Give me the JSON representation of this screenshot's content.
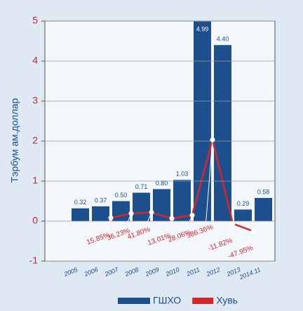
{
  "chart_data": {
    "type": "bar",
    "y_label": "Тэрбум ам.доллар",
    "categories": [
      "2005",
      "2006",
      "2007",
      "2008",
      "2009",
      "2010",
      "2011",
      "2012",
      "2013",
      "2014.11"
    ],
    "series": [
      {
        "name": "ГШХО",
        "type": "bar",
        "color": "#1d4f8c",
        "values": [
          0.32,
          0.37,
          0.5,
          0.71,
          0.8,
          1.03,
          4.99,
          4.4,
          0.29,
          0.58
        ],
        "value_labels": [
          "0.32",
          "0.37",
          "0.50",
          "0.71",
          "0.80",
          "1.03",
          "4.99",
          "4.40",
          "0.29",
          "0.58"
        ]
      },
      {
        "name": "Хувь",
        "type": "line",
        "color": "#d7262b",
        "values": [
          null,
          15.85,
          36.23,
          41.8,
          13.01,
          28.06,
          386.36,
          -11.82,
          -47.95,
          null
        ],
        "value_labels": [
          null,
          "15.85%",
          "36.23%",
          "41.80%",
          "13.01%",
          "28.06%",
          "386.36%",
          "-11.82%",
          "-47.95%",
          null
        ]
      }
    ],
    "ylim": [
      -1,
      5
    ],
    "yticks": [
      -1,
      0,
      1,
      2,
      3,
      4,
      5
    ],
    "grid": true
  }
}
